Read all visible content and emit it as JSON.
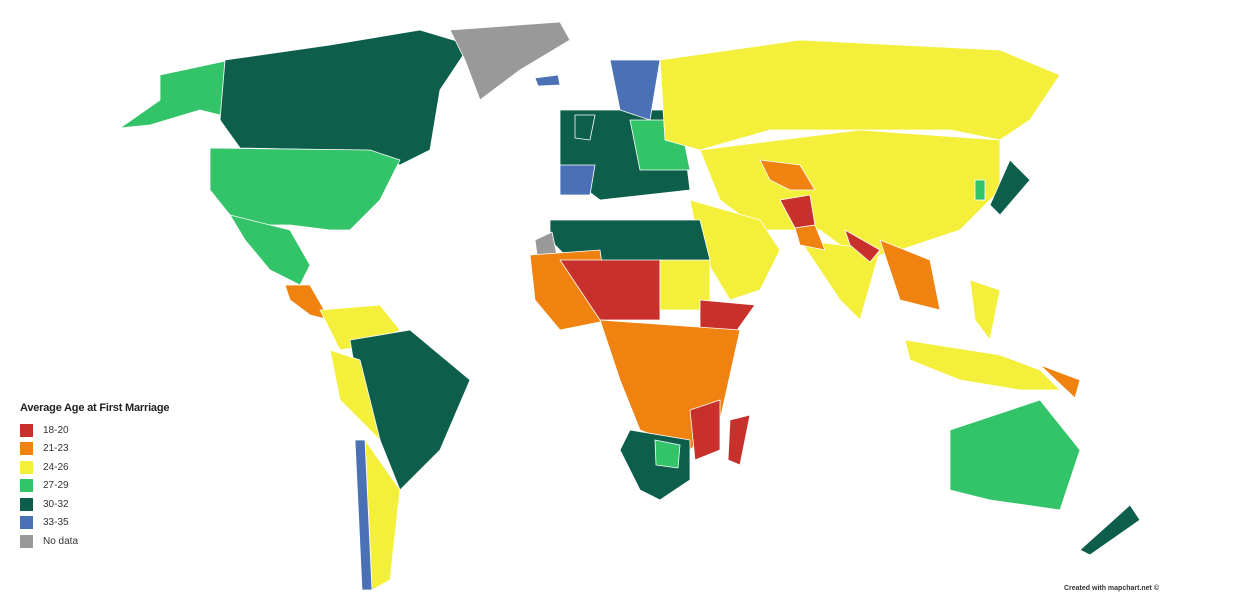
{
  "legend": {
    "title": "Average Age at First Marriage",
    "items": [
      {
        "label": "18-20",
        "color": "#c8302b"
      },
      {
        "label": "21-23",
        "color": "#f0820f"
      },
      {
        "label": "24-26",
        "color": "#f4ef3a"
      },
      {
        "label": "27-29",
        "color": "#33c46a"
      },
      {
        "label": "30-32",
        "color": "#0d5e4b"
      },
      {
        "label": "33-35",
        "color": "#4a70b5"
      },
      {
        "label": "No data",
        "color": "#999999"
      }
    ]
  },
  "credit": "Created with mapchart.net ©"
}
